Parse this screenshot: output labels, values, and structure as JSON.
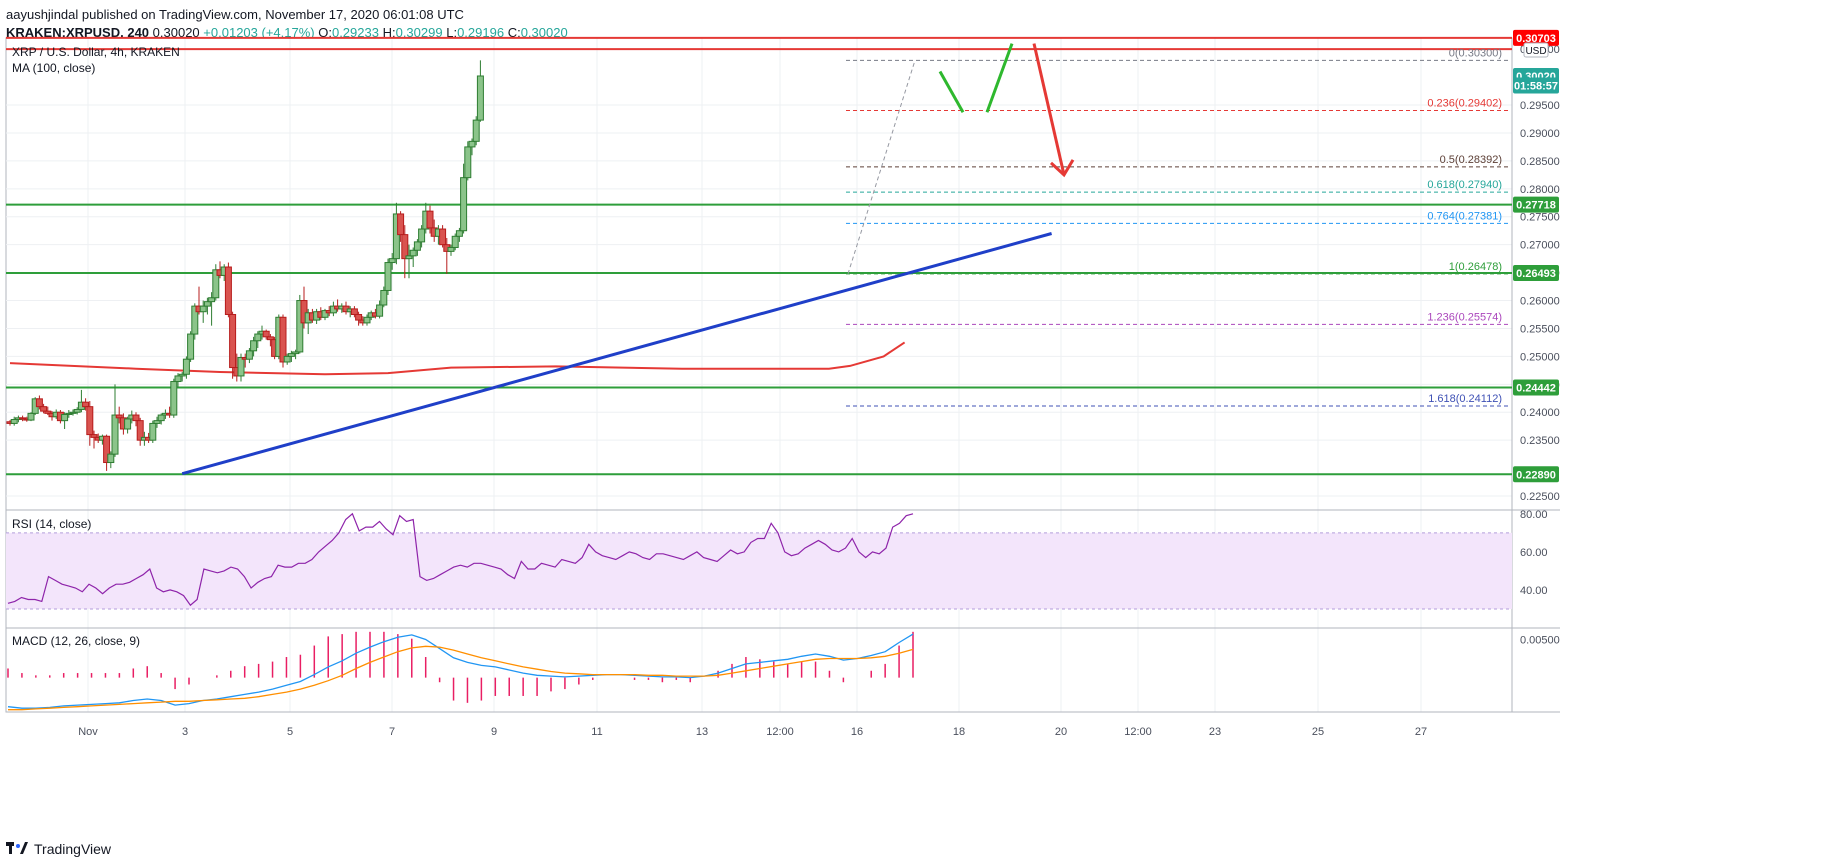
{
  "header": {
    "publisher_line": "aayushjindal published on TradingView.com, November 17, 2020 06:01:08 UTC",
    "symbol_line": "KRAKEN:XRPUSD, 240",
    "price": "0.30020",
    "change": "+0.01203 (+4.17%)",
    "o_label": "O:",
    "o": "0.29233",
    "h_label": "H:",
    "h": "0.30299",
    "l_label": "L:",
    "l": "0.29196",
    "c_label": "C:",
    "c": "0.30020"
  },
  "footer": {
    "brand": "TradingView"
  },
  "chart_data": {
    "type": "candlestick",
    "title": "XRP / U.S. Dollar, 4h, KRAKEN",
    "indicator_label": "MA (100, close)",
    "currency": "USD",
    "colors": {
      "up": "#26a69a",
      "up_fill": "#8bc48a",
      "down": "#c0392b",
      "ma": "#e53935",
      "trendline": "#1f3fc8",
      "hline_red": "#e53935",
      "hline_green": "#2e9e3a"
    },
    "x_ticks": [
      "Nov",
      "3",
      "5",
      "7",
      "9",
      "11",
      "13",
      "12:00",
      "16",
      "18",
      "20",
      "12:00",
      "23",
      "25",
      "27"
    ],
    "y_range": [
      0.2225,
      0.307
    ],
    "y_ticks": [
      "0.30500",
      "0.29500",
      "0.29000",
      "0.28500",
      "0.28000",
      "0.27500",
      "0.27000",
      "0.26500",
      "0.26000",
      "0.25500",
      "0.25000",
      "0.24500",
      "0.24000",
      "0.23500",
      "0.22500"
    ],
    "y_tick_values": [
      0.305,
      0.295,
      0.29,
      0.285,
      0.28,
      0.275,
      0.27,
      0.265,
      0.26,
      0.255,
      0.25,
      0.245,
      0.24,
      0.235,
      0.225
    ],
    "price_badges": [
      {
        "label": "0.30703",
        "value": 0.30703,
        "color": "#ff0000"
      },
      {
        "label": "0.30020",
        "value": 0.3002,
        "color": "#26a69a"
      },
      {
        "label": "01:58:57",
        "value": 0.2985,
        "color": "#26a69a"
      },
      {
        "label": "0.27718",
        "value": 0.27718,
        "color": "#2e9e3a"
      },
      {
        "label": "0.26493",
        "value": 0.26493,
        "color": "#2e9e3a"
      },
      {
        "label": "0.24442",
        "value": 0.24442,
        "color": "#2e9e3a"
      },
      {
        "label": "0.22890",
        "value": 0.2289,
        "color": "#2e9e3a"
      }
    ],
    "horizontal_levels": [
      {
        "value": 0.30703,
        "color": "#e53935"
      },
      {
        "value": 0.305,
        "color": "#e53935"
      },
      {
        "value": 0.27718,
        "color": "#2e9e3a"
      },
      {
        "value": 0.26493,
        "color": "#2e9e3a"
      },
      {
        "value": 0.24442,
        "color": "#2e9e3a"
      },
      {
        "value": 0.2289,
        "color": "#2e9e3a"
      }
    ],
    "fib_levels": [
      {
        "label": "0(0.30300)",
        "value": 0.303,
        "color": "#787b86"
      },
      {
        "label": "0.236(0.29402)",
        "value": 0.29402,
        "color": "#e53935"
      },
      {
        "label": "0.5(0.28392)",
        "value": 0.28392,
        "color": "#5d4037"
      },
      {
        "label": "0.618(0.27940)",
        "value": 0.2794,
        "color": "#26a69a"
      },
      {
        "label": "0.764(0.27381)",
        "value": 0.27381,
        "color": "#2196f3"
      },
      {
        "label": "1(0.26478)",
        "value": 0.26478,
        "color": "#2e9e3a"
      },
      {
        "label": "1.236(0.25574)",
        "value": 0.25574,
        "color": "#ab47bc"
      },
      {
        "label": "1.618(0.24112)",
        "value": 0.24112,
        "color": "#3f51b5"
      }
    ],
    "candles": [
      [
        0.2383,
        0.2386,
        0.2376,
        0.238
      ],
      [
        0.238,
        0.2392,
        0.2376,
        0.2387
      ],
      [
        0.2387,
        0.2394,
        0.2382,
        0.239
      ],
      [
        0.239,
        0.2394,
        0.2384,
        0.2388
      ],
      [
        0.2388,
        0.2392,
        0.2383,
        0.2386
      ],
      [
        0.2386,
        0.24,
        0.2384,
        0.2398
      ],
      [
        0.2398,
        0.2427,
        0.2395,
        0.2424
      ],
      [
        0.2424,
        0.243,
        0.2405,
        0.241
      ],
      [
        0.241,
        0.2415,
        0.2398,
        0.2402
      ],
      [
        0.2402,
        0.241,
        0.2395,
        0.2398
      ],
      [
        0.2398,
        0.2402,
        0.2385,
        0.2392
      ],
      [
        0.2392,
        0.2405,
        0.2388,
        0.24
      ],
      [
        0.24,
        0.2404,
        0.238,
        0.2385
      ],
      [
        0.2385,
        0.24,
        0.237,
        0.2396
      ],
      [
        0.2396,
        0.2404,
        0.239,
        0.2398
      ],
      [
        0.2398,
        0.2405,
        0.2394,
        0.24
      ],
      [
        0.24,
        0.2409,
        0.2396,
        0.2405
      ],
      [
        0.2405,
        0.244,
        0.24,
        0.2418
      ],
      [
        0.2418,
        0.2425,
        0.2403,
        0.241
      ],
      [
        0.241,
        0.242,
        0.234,
        0.236
      ],
      [
        0.236,
        0.2367,
        0.2335,
        0.2355
      ],
      [
        0.2355,
        0.2362,
        0.2345,
        0.235
      ],
      [
        0.235,
        0.236,
        0.2342,
        0.2357
      ],
      [
        0.2357,
        0.236,
        0.2295,
        0.231
      ],
      [
        0.231,
        0.233,
        0.23,
        0.2325
      ],
      [
        0.2325,
        0.245,
        0.232,
        0.2395
      ],
      [
        0.2395,
        0.241,
        0.238,
        0.239
      ],
      [
        0.239,
        0.2398,
        0.236,
        0.237
      ],
      [
        0.237,
        0.2392,
        0.2362,
        0.2388
      ],
      [
        0.2388,
        0.2403,
        0.238,
        0.2395
      ],
      [
        0.2395,
        0.24,
        0.2375,
        0.2385
      ],
      [
        0.2385,
        0.239,
        0.234,
        0.235
      ],
      [
        0.235,
        0.2365,
        0.234,
        0.2355
      ],
      [
        0.2355,
        0.2363,
        0.2345,
        0.235
      ],
      [
        0.235,
        0.2385,
        0.2345,
        0.238
      ],
      [
        0.238,
        0.2392,
        0.2372,
        0.2385
      ],
      [
        0.2385,
        0.2398,
        0.2378,
        0.2395
      ],
      [
        0.2395,
        0.2405,
        0.2388,
        0.2398
      ],
      [
        0.2398,
        0.241,
        0.239,
        0.2395
      ],
      [
        0.2395,
        0.246,
        0.239,
        0.2455
      ],
      [
        0.2455,
        0.247,
        0.2445,
        0.2465
      ],
      [
        0.2465,
        0.2472,
        0.2455,
        0.2468
      ],
      [
        0.2468,
        0.25,
        0.246,
        0.2495
      ],
      [
        0.2495,
        0.2545,
        0.249,
        0.254
      ],
      [
        0.254,
        0.2595,
        0.253,
        0.259
      ],
      [
        0.259,
        0.2625,
        0.2575,
        0.258
      ],
      [
        0.258,
        0.26,
        0.256,
        0.259
      ],
      [
        0.259,
        0.2605,
        0.2575,
        0.2598
      ],
      [
        0.2598,
        0.2615,
        0.2555,
        0.2605
      ],
      [
        0.2605,
        0.2665,
        0.26,
        0.2655
      ],
      [
        0.2655,
        0.267,
        0.264,
        0.2645
      ],
      [
        0.2645,
        0.2665,
        0.2635,
        0.266
      ],
      [
        0.266,
        0.2668,
        0.257,
        0.2575
      ],
      [
        0.2575,
        0.258,
        0.246,
        0.248
      ],
      [
        0.248,
        0.2505,
        0.2455,
        0.2465
      ],
      [
        0.2465,
        0.2505,
        0.2455,
        0.2498
      ],
      [
        0.2498,
        0.2505,
        0.248,
        0.2495
      ],
      [
        0.2495,
        0.2515,
        0.2488,
        0.251
      ],
      [
        0.251,
        0.2535,
        0.25,
        0.2528
      ],
      [
        0.2528,
        0.2545,
        0.2515,
        0.254
      ],
      [
        0.254,
        0.2555,
        0.253,
        0.2545
      ],
      [
        0.2545,
        0.2548,
        0.253,
        0.2535
      ],
      [
        0.2535,
        0.254,
        0.2518,
        0.253
      ],
      [
        0.253,
        0.2535,
        0.2495,
        0.25
      ],
      [
        0.25,
        0.2575,
        0.2495,
        0.257
      ],
      [
        0.257,
        0.2575,
        0.248,
        0.249
      ],
      [
        0.249,
        0.2505,
        0.2485,
        0.25
      ],
      [
        0.25,
        0.251,
        0.249,
        0.2505
      ],
      [
        0.2505,
        0.2512,
        0.2495,
        0.2508
      ],
      [
        0.2508,
        0.261,
        0.2505,
        0.26
      ],
      [
        0.26,
        0.2625,
        0.255,
        0.256
      ],
      [
        0.256,
        0.2585,
        0.254,
        0.2578
      ],
      [
        0.2578,
        0.2585,
        0.256,
        0.2565
      ],
      [
        0.2565,
        0.2585,
        0.2558,
        0.258
      ],
      [
        0.258,
        0.2588,
        0.2565,
        0.257
      ],
      [
        0.257,
        0.2585,
        0.2565,
        0.2582
      ],
      [
        0.2582,
        0.259,
        0.2572,
        0.2578
      ],
      [
        0.2578,
        0.2598,
        0.2572,
        0.259
      ],
      [
        0.259,
        0.2602,
        0.258,
        0.2585
      ],
      [
        0.2585,
        0.2595,
        0.2578,
        0.259
      ],
      [
        0.259,
        0.2598,
        0.2575,
        0.258
      ],
      [
        0.258,
        0.259,
        0.257,
        0.2585
      ],
      [
        0.2585,
        0.259,
        0.257,
        0.2575
      ],
      [
        0.2575,
        0.258,
        0.2555,
        0.2565
      ],
      [
        0.2565,
        0.2572,
        0.2555,
        0.256
      ],
      [
        0.256,
        0.2575,
        0.2555,
        0.257
      ],
      [
        0.257,
        0.2582,
        0.2565,
        0.2578
      ],
      [
        0.2578,
        0.2585,
        0.2568,
        0.2572
      ],
      [
        0.2572,
        0.26,
        0.2568,
        0.2592
      ],
      [
        0.2592,
        0.2625,
        0.2588,
        0.2618
      ],
      [
        0.2618,
        0.2675,
        0.261,
        0.2668
      ],
      [
        0.2668,
        0.2685,
        0.2655,
        0.2675
      ],
      [
        0.2675,
        0.2775,
        0.2665,
        0.2755
      ],
      [
        0.2755,
        0.276,
        0.2705,
        0.2718
      ],
      [
        0.2718,
        0.2735,
        0.264,
        0.2675
      ],
      [
        0.2675,
        0.27,
        0.264,
        0.268
      ],
      [
        0.268,
        0.2695,
        0.266,
        0.269
      ],
      [
        0.269,
        0.271,
        0.268,
        0.2705
      ],
      [
        0.2705,
        0.2735,
        0.2695,
        0.2728
      ],
      [
        0.2728,
        0.2775,
        0.272,
        0.276
      ],
      [
        0.276,
        0.277,
        0.272,
        0.273
      ],
      [
        0.273,
        0.2745,
        0.2705,
        0.2715
      ],
      [
        0.2715,
        0.2735,
        0.27,
        0.2728
      ],
      [
        0.2728,
        0.2735,
        0.2695,
        0.27
      ],
      [
        0.27,
        0.2712,
        0.2648,
        0.2688
      ],
      [
        0.2688,
        0.27,
        0.268,
        0.2695
      ],
      [
        0.2695,
        0.272,
        0.269,
        0.2715
      ],
      [
        0.2715,
        0.273,
        0.2705,
        0.2725
      ],
      [
        0.2725,
        0.2845,
        0.272,
        0.282
      ],
      [
        0.282,
        0.2885,
        0.2815,
        0.2875
      ],
      [
        0.2875,
        0.289,
        0.286,
        0.2885
      ],
      [
        0.2885,
        0.293,
        0.2878,
        0.2923
      ],
      [
        0.2923,
        0.303,
        0.292,
        0.3002
      ]
    ],
    "ma100": [
      [
        0,
        0.2488
      ],
      [
        30,
        0.2478
      ],
      [
        50,
        0.2472
      ],
      [
        75,
        0.2468
      ],
      [
        90,
        0.247
      ],
      [
        105,
        0.248
      ],
      [
        130,
        0.2482
      ],
      [
        160,
        0.2478
      ],
      [
        195,
        0.2478
      ],
      [
        200,
        0.2483
      ],
      [
        208,
        0.25
      ],
      [
        213,
        0.2525
      ]
    ],
    "trendline": [
      [
        41,
        0.229
      ],
      [
        248,
        0.272
      ]
    ],
    "forecast_green": [
      [
        0.2988,
        0.2932
      ],
      [
        0.2932,
        0.3053
      ]
    ],
    "forecast_red": [
      0.3048,
      0.2825
    ],
    "rsi": {
      "label": "RSI (14, close)",
      "y_ticks": [
        "80.00",
        "60.00",
        "40.00"
      ],
      "band": [
        30,
        70
      ],
      "values": [
        33,
        34,
        36,
        35,
        35,
        34,
        47,
        45,
        43,
        42,
        41,
        39,
        43,
        41,
        38,
        41,
        43,
        43,
        44,
        46,
        48,
        51,
        41,
        39,
        40,
        39,
        37,
        32,
        35,
        51,
        50,
        49,
        50,
        52,
        51,
        47,
        41,
        44,
        46,
        47,
        53,
        52,
        52,
        54,
        54,
        56,
        60,
        63,
        66,
        70,
        77,
        80,
        71,
        73,
        73,
        76,
        72,
        69,
        79,
        76,
        77,
        47,
        45,
        46,
        48,
        50,
        52,
        53,
        52,
        54,
        54,
        53,
        52,
        51,
        48,
        46,
        55,
        51,
        51,
        54,
        53,
        52,
        56,
        55,
        54,
        57,
        64,
        60,
        58,
        57,
        56,
        58,
        60,
        59,
        57,
        56,
        59,
        59,
        58,
        57,
        56,
        58,
        60,
        57,
        56,
        55,
        58,
        61,
        59,
        60,
        65,
        67,
        67,
        75,
        70,
        60,
        58,
        59,
        62,
        64,
        66,
        64,
        61,
        60,
        62,
        67,
        60,
        57,
        60,
        59,
        62,
        73,
        75,
        79,
        80
      ],
      "y_range": [
        20,
        82
      ]
    },
    "macd": {
      "label": "MACD (12, 26, close, 9)",
      "y_ticks": [
        "0.00500"
      ],
      "y_tick_values": [
        0.005
      ],
      "y_range": [
        -0.0045,
        0.0065
      ],
      "macd": [
        -0.0038,
        -0.004,
        -0.004,
        -0.0039,
        -0.0037,
        -0.0036,
        -0.0035,
        -0.0034,
        -0.0033,
        -0.003,
        -0.0028,
        -0.003,
        -0.0036,
        -0.0034,
        -0.003,
        -0.0028,
        -0.0025,
        -0.0022,
        -0.0019,
        -0.0015,
        -0.001,
        -0.0005,
        0.0004,
        0.0014,
        0.0022,
        0.0032,
        0.004,
        0.0047,
        0.0053,
        0.0056,
        0.005,
        0.0038,
        0.0026,
        0.002,
        0.0016,
        0.0014,
        0.001,
        0.0006,
        0.0003,
        0.0002,
        0.0001,
        0.0002,
        0.0003,
        0.0004,
        0.0004,
        0.0003,
        0.0002,
        0.0001,
        0.0001,
        0.0,
        0.0002,
        0.0006,
        0.0012,
        0.0018,
        0.002,
        0.0022,
        0.0024,
        0.0028,
        0.0031,
        0.0028,
        0.0023,
        0.0025,
        0.0029,
        0.0034,
        0.0046,
        0.0057
      ],
      "signal": [
        -0.0042,
        -0.0042,
        -0.0041,
        -0.004,
        -0.0039,
        -0.0038,
        -0.0037,
        -0.0036,
        -0.0035,
        -0.0034,
        -0.0033,
        -0.0032,
        -0.0031,
        -0.0031,
        -0.003,
        -0.0029,
        -0.0028,
        -0.0027,
        -0.0025,
        -0.0022,
        -0.0019,
        -0.0015,
        -0.001,
        -0.0004,
        0.0003,
        0.0012,
        0.002,
        0.0027,
        0.0034,
        0.0039,
        0.0041,
        0.004,
        0.0036,
        0.0031,
        0.0026,
        0.0022,
        0.0018,
        0.0014,
        0.0011,
        0.0008,
        0.0006,
        0.0005,
        0.0004,
        0.0004,
        0.0004,
        0.0004,
        0.0003,
        0.0003,
        0.0002,
        0.0002,
        0.0002,
        0.0003,
        0.0006,
        0.0009,
        0.0012,
        0.0015,
        0.0018,
        0.0021,
        0.0024,
        0.0025,
        0.0025,
        0.0025,
        0.0026,
        0.0028,
        0.0032,
        0.0037
      ]
    }
  }
}
